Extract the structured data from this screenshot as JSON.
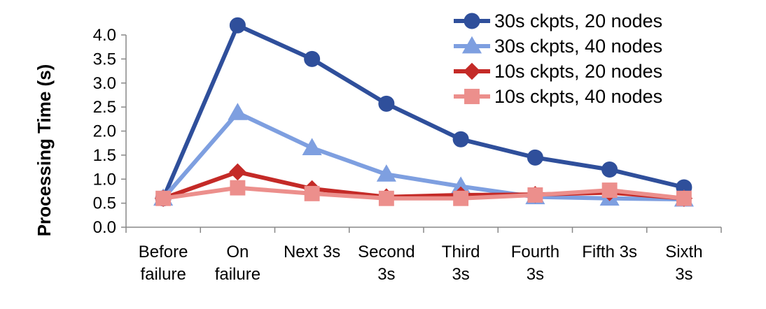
{
  "chart_data": {
    "type": "line",
    "title": "",
    "xlabel": "",
    "ylabel": "Processing Time (s)",
    "ylim": [
      0,
      4.0
    ],
    "yticks": [
      "0.0",
      "0.5",
      "1.0",
      "1.5",
      "2.0",
      "2.5",
      "3.0",
      "3.5",
      "4.0"
    ],
    "ytick_values": [
      0,
      0.5,
      1.0,
      1.5,
      2.0,
      2.5,
      3.0,
      3.5,
      4.0
    ],
    "grid": false,
    "legend_position": "top-right",
    "categories": [
      [
        "Before",
        "failure"
      ],
      [
        "On",
        "failure"
      ],
      [
        "Next 3s"
      ],
      [
        "Second",
        "3s"
      ],
      [
        "Third",
        "3s"
      ],
      [
        "Fourth",
        "3s"
      ],
      [
        "Fifth 3s"
      ],
      [
        "Sixth",
        "3s"
      ]
    ],
    "series": [
      {
        "name": "30s ckpts, 20 nodes",
        "color": "#2f4f9b",
        "marker": "circle",
        "values": [
          0.6,
          4.2,
          3.5,
          2.57,
          1.83,
          1.45,
          1.2,
          0.83
        ]
      },
      {
        "name": "30s ckpts, 40 nodes",
        "color": "#7e9fe0",
        "marker": "triangle",
        "values": [
          0.6,
          2.38,
          1.65,
          1.1,
          0.85,
          0.63,
          0.6,
          0.58
        ]
      },
      {
        "name": "10s ckpts, 20 nodes",
        "color": "#c42a27",
        "marker": "diamond",
        "values": [
          0.6,
          1.15,
          0.8,
          0.63,
          0.67,
          0.68,
          0.72,
          0.6
        ]
      },
      {
        "name": "10s ckpts, 40 nodes",
        "color": "#ec8f8c",
        "marker": "square",
        "values": [
          0.6,
          0.82,
          0.7,
          0.6,
          0.6,
          0.67,
          0.77,
          0.6
        ]
      }
    ]
  }
}
